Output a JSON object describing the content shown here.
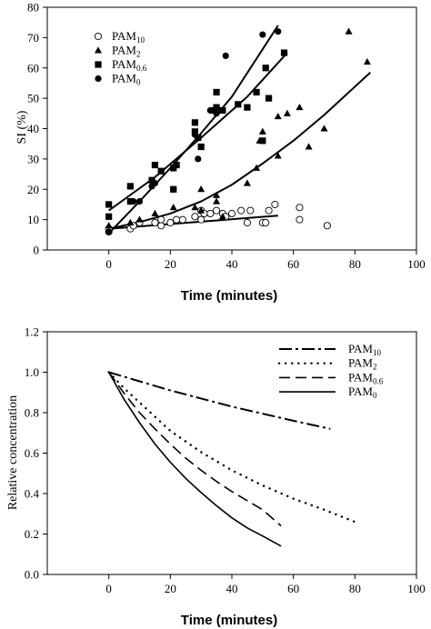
{
  "chart_data": [
    {
      "type": "scatter",
      "xlabel": "Time (minutes)",
      "ylabel": "SI (%)",
      "xlim": [
        -20,
        100
      ],
      "ylim": [
        0,
        80
      ],
      "xticks": [
        0,
        20,
        40,
        60,
        80,
        100
      ],
      "yticks": [
        0,
        10,
        20,
        30,
        40,
        50,
        60,
        70,
        80
      ],
      "grid": false,
      "legend_position": "top-left",
      "series": [
        {
          "name": "PAM",
          "subscript": "10",
          "marker": "open-circle",
          "points": [
            [
              0,
              6
            ],
            [
              0,
              7
            ],
            [
              7,
              7
            ],
            [
              8,
              8
            ],
            [
              10,
              9
            ],
            [
              15,
              9
            ],
            [
              17,
              8
            ],
            [
              17,
              10
            ],
            [
              20,
              9
            ],
            [
              22,
              10
            ],
            [
              24,
              10
            ],
            [
              28,
              11
            ],
            [
              30,
              10
            ],
            [
              30,
              13
            ],
            [
              31,
              12
            ],
            [
              33,
              12
            ],
            [
              35,
              13
            ],
            [
              37,
              12
            ],
            [
              38,
              11
            ],
            [
              40,
              12
            ],
            [
              43,
              13
            ],
            [
              45,
              9
            ],
            [
              46,
              13
            ],
            [
              50,
              9
            ],
            [
              51,
              9
            ],
            [
              52,
              13
            ],
            [
              54,
              15
            ],
            [
              62,
              10
            ],
            [
              62,
              14
            ],
            [
              71,
              8
            ]
          ],
          "fit": [
            [
              0,
              7
            ],
            [
              55,
              11.3
            ]
          ]
        },
        {
          "name": "PAM",
          "subscript": "2",
          "marker": "filled-triangle",
          "points": [
            [
              0,
              8
            ],
            [
              7,
              9
            ],
            [
              10,
              10
            ],
            [
              15,
              12
            ],
            [
              21,
              14
            ],
            [
              28,
              14
            ],
            [
              30,
              13
            ],
            [
              30,
              20
            ],
            [
              35,
              16
            ],
            [
              35,
              18
            ],
            [
              37,
              11
            ],
            [
              45,
              22
            ],
            [
              48,
              27
            ],
            [
              49,
              36
            ],
            [
              50,
              39
            ],
            [
              55,
              31
            ],
            [
              55,
              44
            ],
            [
              58,
              45
            ],
            [
              62,
              47
            ],
            [
              65,
              34
            ],
            [
              70,
              40
            ],
            [
              78,
              72
            ],
            [
              84,
              62
            ]
          ],
          "fit": [
            [
              0,
              7
            ],
            [
              10,
              9.2
            ],
            [
              20,
              12
            ],
            [
              30,
              16
            ],
            [
              40,
              21.5
            ],
            [
              50,
              28.5
            ],
            [
              60,
              36
            ],
            [
              70,
              44.5
            ],
            [
              85,
              58.5
            ]
          ]
        },
        {
          "name": "PAM",
          "subscript": "0.6",
          "marker": "filled-square",
          "points": [
            [
              0,
              11
            ],
            [
              0,
              15
            ],
            [
              7,
              16
            ],
            [
              7,
              21
            ],
            [
              14,
              23
            ],
            [
              15,
              28
            ],
            [
              17,
              26
            ],
            [
              21,
              27
            ],
            [
              21,
              20
            ],
            [
              22,
              28
            ],
            [
              28,
              39
            ],
            [
              28,
              42
            ],
            [
              29,
              37
            ],
            [
              30,
              34
            ],
            [
              34,
              46
            ],
            [
              35,
              47
            ],
            [
              35,
              52
            ],
            [
              37,
              46
            ],
            [
              42,
              48
            ],
            [
              45,
              47
            ],
            [
              48,
              52
            ],
            [
              50,
              36
            ],
            [
              51,
              60
            ],
            [
              52,
              50
            ],
            [
              57,
              65
            ]
          ],
          "fit": [
            [
              0,
              13
            ],
            [
              15,
              24
            ],
            [
              30,
              37
            ],
            [
              45,
              50.5
            ],
            [
              58,
              65
            ]
          ]
        },
        {
          "name": "PAM",
          "subscript": "0",
          "marker": "filled-circle",
          "points": [
            [
              0,
              6
            ],
            [
              8,
              16
            ],
            [
              10,
              16
            ],
            [
              14,
              21
            ],
            [
              15,
              22
            ],
            [
              21,
              20
            ],
            [
              28,
              38
            ],
            [
              29,
              30
            ],
            [
              33,
              46
            ],
            [
              35,
              45
            ],
            [
              38,
              64
            ],
            [
              50,
              71
            ],
            [
              55,
              72
            ]
          ],
          "fit": [
            [
              0,
              5.5
            ],
            [
              10,
              16
            ],
            [
              20,
              27
            ],
            [
              30,
              38.5
            ],
            [
              40,
              50.5
            ],
            [
              55,
              74
            ]
          ]
        }
      ]
    },
    {
      "type": "line",
      "xlabel": "Time (minutes)",
      "ylabel": "Relative concentration",
      "xlim": [
        -20,
        100
      ],
      "ylim": [
        0,
        1.2
      ],
      "xticks": [
        0,
        20,
        40,
        60,
        80,
        100
      ],
      "yticks": [
        0.0,
        0.2,
        0.4,
        0.6,
        0.8,
        1.0,
        1.2
      ],
      "ytick_labels": [
        "0.0",
        "0.2",
        "0.4",
        "0.6",
        "0.8",
        "1.0",
        "1.2"
      ],
      "grid": false,
      "legend_position": "top-right",
      "series": [
        {
          "name": "PAM",
          "subscript": "10",
          "style": "dash-dot",
          "points": [
            [
              0,
              1.0
            ],
            [
              10,
              0.955
            ],
            [
              20,
              0.91
            ],
            [
              30,
              0.87
            ],
            [
              40,
              0.83
            ],
            [
              50,
              0.795
            ],
            [
              60,
              0.76
            ],
            [
              72,
              0.72
            ]
          ]
        },
        {
          "name": "PAM",
          "subscript": "2",
          "style": "dotted",
          "points": [
            [
              0,
              1.0
            ],
            [
              5,
              0.92
            ],
            [
              10,
              0.85
            ],
            [
              15,
              0.78
            ],
            [
              20,
              0.71
            ],
            [
              30,
              0.605
            ],
            [
              40,
              0.515
            ],
            [
              50,
              0.44
            ],
            [
              60,
              0.375
            ],
            [
              70,
              0.32
            ],
            [
              80,
              0.26
            ]
          ]
        },
        {
          "name": "PAM",
          "subscript": "0.6",
          "style": "dashed",
          "points": [
            [
              0,
              1.0
            ],
            [
              5,
              0.895
            ],
            [
              10,
              0.8
            ],
            [
              15,
              0.72
            ],
            [
              20,
              0.645
            ],
            [
              25,
              0.575
            ],
            [
              30,
              0.515
            ],
            [
              35,
              0.46
            ],
            [
              40,
              0.41
            ],
            [
              45,
              0.365
            ],
            [
              50,
              0.32
            ],
            [
              56,
              0.24
            ]
          ]
        },
        {
          "name": "PAM",
          "subscript": "0",
          "style": "solid",
          "points": [
            [
              0,
              1.0
            ],
            [
              5,
              0.865
            ],
            [
              10,
              0.75
            ],
            [
              15,
              0.645
            ],
            [
              20,
              0.555
            ],
            [
              25,
              0.475
            ],
            [
              30,
              0.405
            ],
            [
              35,
              0.34
            ],
            [
              40,
              0.28
            ],
            [
              45,
              0.23
            ],
            [
              50,
              0.19
            ],
            [
              56,
              0.14
            ]
          ]
        }
      ]
    }
  ]
}
